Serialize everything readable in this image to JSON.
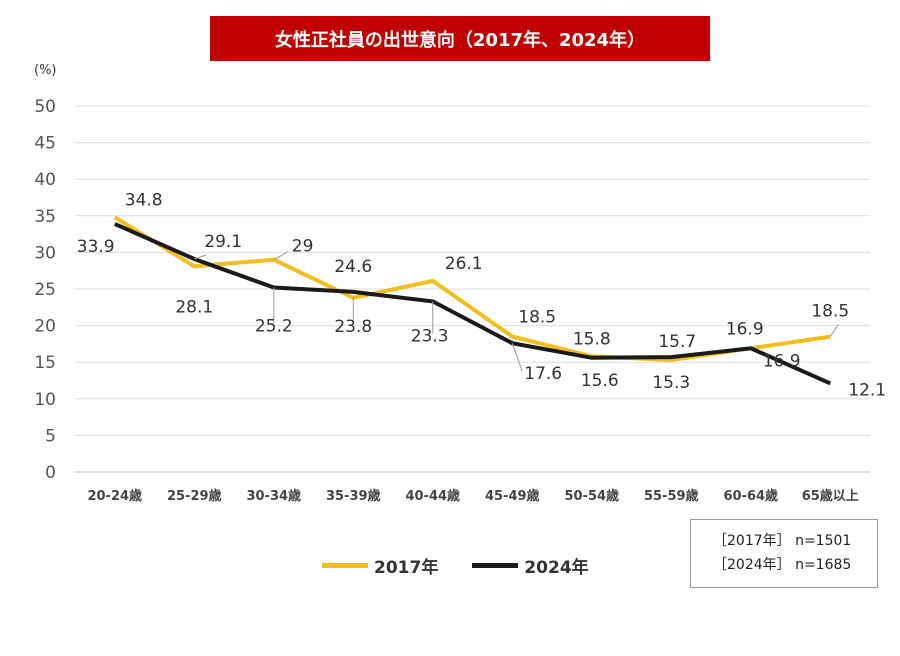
{
  "chart_data": {
    "type": "line",
    "title": "女性正社員の出世意向（2017年、2024年）",
    "ylabel": "(%)",
    "xlabel": "",
    "ylim": [
      0,
      50
    ],
    "yticks": [
      0,
      5,
      10,
      15,
      20,
      25,
      30,
      35,
      40,
      45,
      50
    ],
    "grid": true,
    "categories": [
      "20-24歳",
      "25-29歳",
      "30-34歳",
      "35-39歳",
      "40-44歳",
      "45-49歳",
      "50-54歳",
      "55-59歳",
      "60-64歳",
      "65歳以上"
    ],
    "series": [
      {
        "name": "2017年",
        "color": "#f2bd1d",
        "values": [
          34.8,
          28.1,
          29,
          23.8,
          26.1,
          18.5,
          15.8,
          15.3,
          16.9,
          18.5
        ],
        "labels": [
          "34.8",
          "28.1",
          "29",
          "23.8",
          "26.1",
          "18.5",
          "15.8",
          "15.3",
          "16.9",
          "18.5"
        ]
      },
      {
        "name": "2024年",
        "color": "#1a1a1a",
        "values": [
          33.9,
          29.1,
          25.2,
          24.6,
          23.3,
          17.6,
          15.6,
          15.7,
          16.9,
          12.1
        ],
        "labels": [
          "33.9",
          "29.1",
          "25.2",
          "24.6",
          "23.3",
          "17.6",
          "15.6",
          "15.7",
          "16.9",
          "12.1"
        ]
      }
    ],
    "legend_position": "bottom-center"
  },
  "sample_note": {
    "line1": "［2017年］ n=1501",
    "line2": "［2024年］ n=1685"
  }
}
